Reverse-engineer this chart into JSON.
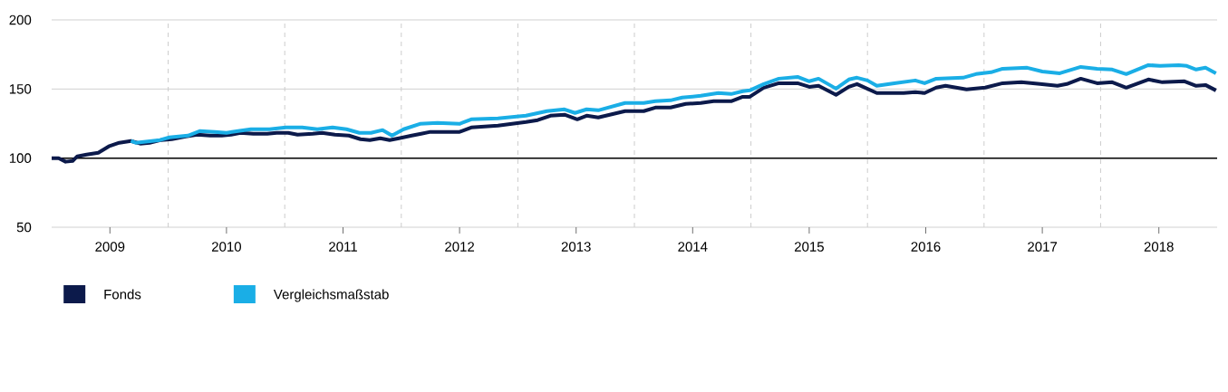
{
  "chart_data": {
    "type": "line",
    "xlim": [
      2009,
      2019
    ],
    "ylim": [
      50,
      200
    ],
    "xticks": [
      {
        "value": 2009.5,
        "label": "2009"
      },
      {
        "value": 2010.5,
        "label": "2010"
      },
      {
        "value": 2011.5,
        "label": "2011"
      },
      {
        "value": 2012.5,
        "label": "2012"
      },
      {
        "value": 2013.5,
        "label": "2013"
      },
      {
        "value": 2014.5,
        "label": "2014"
      },
      {
        "value": 2015.5,
        "label": "2015"
      },
      {
        "value": 2016.5,
        "label": "2016"
      },
      {
        "value": 2017.5,
        "label": "2017"
      },
      {
        "value": 2018.5,
        "label": "2018"
      }
    ],
    "yticks": [
      50,
      100,
      150,
      200
    ],
    "grid": "y",
    "legend": "bottom",
    "line_style": "solid",
    "ref_lines": [
      {
        "axis": "y",
        "value": 100,
        "color": "#000000",
        "line_style": "solid"
      },
      {
        "axis": "x",
        "value": 2010,
        "color": "#cccccc",
        "line_style": "dashed"
      },
      {
        "axis": "x",
        "value": 2011,
        "color": "#cccccc",
        "line_style": "dashed"
      },
      {
        "axis": "x",
        "value": 2012,
        "color": "#cccccc",
        "line_style": "dashed"
      },
      {
        "axis": "x",
        "value": 2013,
        "color": "#cccccc",
        "line_style": "dashed"
      },
      {
        "axis": "x",
        "value": 2014,
        "color": "#cccccc",
        "line_style": "dashed"
      },
      {
        "axis": "x",
        "value": 2015,
        "color": "#cccccc",
        "line_style": "dashed"
      },
      {
        "axis": "x",
        "value": 2016,
        "color": "#cccccc",
        "line_style": "dashed"
      },
      {
        "axis": "x",
        "value": 2017,
        "color": "#cccccc",
        "line_style": "dashed"
      },
      {
        "axis": "x",
        "value": 2018,
        "color": "#cccccc",
        "line_style": "dashed"
      }
    ],
    "series": [
      {
        "name": "Fonds",
        "color": "#0c1a4b",
        "x": [
          2009.0,
          2009.06,
          2009.12,
          2009.18,
          2009.22,
          2009.3,
          2009.4,
          2009.49,
          2009.58,
          2009.68,
          2009.76,
          2009.84,
          2009.94,
          2010.03,
          2010.15,
          2010.25,
          2010.36,
          2010.46,
          2010.54,
          2010.62,
          2010.73,
          2010.85,
          2010.93,
          2011.03,
          2011.11,
          2011.24,
          2011.32,
          2011.43,
          2011.55,
          2011.65,
          2011.73,
          2011.82,
          2011.9,
          2011.98,
          2012.09,
          2012.17,
          2012.25,
          2012.41,
          2012.5,
          2012.6,
          2012.83,
          2013.07,
          2013.17,
          2013.28,
          2013.4,
          2013.51,
          2013.59,
          2013.69,
          2013.92,
          2014.08,
          2014.18,
          2014.31,
          2014.44,
          2014.57,
          2014.68,
          2014.83,
          2014.93,
          2014.99,
          2015.11,
          2015.24,
          2015.4,
          2015.5,
          2015.58,
          2015.73,
          2015.84,
          2015.91,
          2016.08,
          2016.15,
          2016.31,
          2016.41,
          2016.49,
          2016.59,
          2016.67,
          2016.85,
          2017.01,
          2017.16,
          2017.32,
          2017.48,
          2017.63,
          2017.71,
          2017.83,
          2017.97,
          2018.1,
          2018.22,
          2018.41,
          2018.53,
          2018.72,
          2018.82,
          2018.9,
          2018.99
        ],
        "values": [
          100,
          100,
          97.4,
          98.0,
          101.3,
          102.6,
          103.9,
          108.5,
          111.1,
          112.4,
          110.5,
          111.1,
          113.1,
          113.7,
          115.7,
          117.0,
          116.3,
          116.3,
          117.0,
          118.3,
          117.6,
          117.6,
          118.3,
          118.3,
          117.0,
          117.6,
          118.3,
          117.0,
          116.3,
          113.7,
          113.1,
          114.4,
          113.1,
          114.4,
          116.3,
          117.6,
          119.0,
          119.0,
          119.0,
          122.2,
          123.5,
          126.1,
          127.5,
          130.7,
          131.4,
          128.1,
          130.7,
          129.4,
          134.0,
          134.0,
          136.6,
          136.6,
          139.2,
          139.9,
          141.2,
          141.2,
          144.4,
          144.4,
          151.0,
          154.2,
          154.2,
          151.6,
          152.3,
          145.8,
          151.6,
          153.6,
          147.1,
          147.1,
          147.1,
          147.7,
          147.1,
          151.0,
          152.3,
          149.7,
          151.0,
          154.2,
          154.9,
          153.6,
          152.3,
          153.6,
          157.5,
          154.2,
          154.9,
          151.0,
          156.9,
          154.9,
          155.6,
          152.3,
          152.9,
          149.0
        ]
      },
      {
        "name": "Vergleichsmaßstab",
        "color": "#1aaee6",
        "x": [
          2009.68,
          2009.72,
          2009.93,
          2010.01,
          2010.17,
          2010.27,
          2010.4,
          2010.5,
          2010.6,
          2010.71,
          2010.87,
          2011.01,
          2011.15,
          2011.28,
          2011.41,
          2011.53,
          2011.64,
          2011.74,
          2011.84,
          2011.92,
          2012.02,
          2012.16,
          2012.31,
          2012.5,
          2012.6,
          2012.83,
          2013.07,
          2013.25,
          2013.4,
          2013.49,
          2013.59,
          2013.69,
          2013.92,
          2014.08,
          2014.18,
          2014.31,
          2014.41,
          2014.57,
          2014.72,
          2014.83,
          2014.93,
          2014.99,
          2015.11,
          2015.24,
          2015.4,
          2015.5,
          2015.58,
          2015.73,
          2015.84,
          2015.91,
          2016.0,
          2016.08,
          2016.23,
          2016.41,
          2016.49,
          2016.59,
          2016.82,
          2016.93,
          2017.06,
          2017.16,
          2017.37,
          2017.5,
          2017.65,
          2017.83,
          2017.97,
          2018.1,
          2018.22,
          2018.41,
          2018.51,
          2018.67,
          2018.74,
          2018.82,
          2018.9,
          2018.99
        ],
        "values": [
          112.4,
          111.1,
          113.1,
          115.0,
          116.3,
          119.6,
          119.0,
          118.3,
          119.6,
          120.9,
          120.9,
          122.2,
          122.2,
          120.9,
          122.2,
          120.9,
          118.3,
          118.3,
          120.3,
          116.3,
          120.9,
          124.8,
          125.5,
          124.8,
          128.1,
          128.8,
          130.7,
          134.0,
          135.3,
          132.7,
          135.3,
          134.6,
          139.9,
          139.9,
          141.2,
          141.8,
          143.8,
          145.1,
          147.1,
          146.4,
          148.4,
          149.0,
          153.6,
          157.5,
          158.8,
          155.6,
          157.5,
          150.3,
          156.9,
          158.2,
          156.2,
          152.3,
          154.2,
          156.2,
          154.2,
          157.5,
          158.2,
          160.8,
          162.1,
          164.7,
          165.4,
          162.7,
          161.4,
          166.0,
          164.7,
          164.1,
          160.8,
          167.3,
          166.7,
          167.3,
          166.7,
          164.1,
          165.4,
          161.4
        ]
      }
    ]
  }
}
